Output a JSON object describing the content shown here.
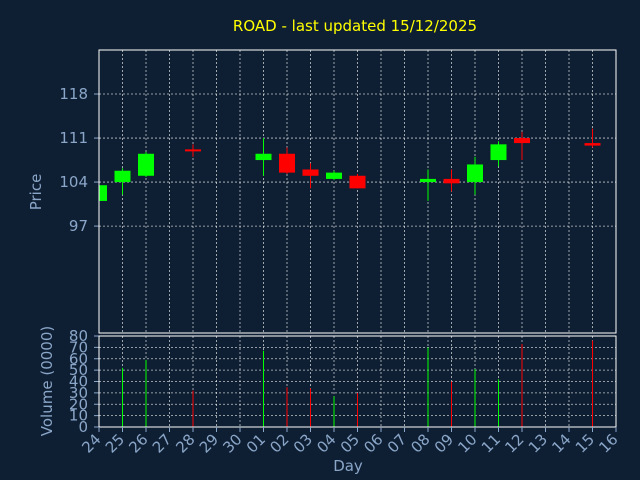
{
  "chart_data": {
    "type": "candlestick",
    "title": "ROAD - last updated 15/12/2025",
    "xlabel": "Day",
    "ylabel_price": "Price",
    "ylabel_volume": "Volume (0000)",
    "x_ticks": [
      "24",
      "25",
      "26",
      "27",
      "28",
      "29",
      "30",
      "01",
      "02",
      "03",
      "04",
      "05",
      "06",
      "07",
      "08",
      "09",
      "10",
      "11",
      "12",
      "13",
      "14",
      "15",
      "16"
    ],
    "price_ylim": [
      80,
      125
    ],
    "price_ticks": [
      97,
      104,
      111,
      118
    ],
    "volume_ylim": [
      0,
      80
    ],
    "volume_ticks": [
      0,
      10,
      20,
      30,
      40,
      50,
      60,
      70,
      80
    ],
    "grid": true,
    "colors": {
      "background": "#0f1f33",
      "up": "#00ff00",
      "down": "#ff0000",
      "title": "#ffff00",
      "axis_text": "#8aa6c8",
      "frame": "#ffffff"
    },
    "candles": [
      {
        "x": "24",
        "open": 101.0,
        "high": 104.0,
        "low": 100.5,
        "close": 103.5
      },
      {
        "x": "25",
        "open": 104.0,
        "high": 106.2,
        "low": 102.0,
        "close": 105.8
      },
      {
        "x": "26",
        "open": 105.0,
        "high": 108.8,
        "low": 104.8,
        "close": 108.5
      },
      {
        "x": "28",
        "open": 109.2,
        "high": 110.0,
        "low": 108.0,
        "close": 109.0
      },
      {
        "x": "01",
        "open": 107.5,
        "high": 111.0,
        "low": 105.0,
        "close": 108.5
      },
      {
        "x": "02",
        "open": 108.5,
        "high": 109.5,
        "low": 105.3,
        "close": 105.5
      },
      {
        "x": "03",
        "open": 106.0,
        "high": 107.0,
        "low": 103.0,
        "close": 105.0
      },
      {
        "x": "04",
        "open": 104.5,
        "high": 105.8,
        "low": 104.3,
        "close": 105.5
      },
      {
        "x": "05",
        "open": 105.0,
        "high": 105.3,
        "low": 103.0,
        "close": 103.0
      },
      {
        "x": "08",
        "open": 104.0,
        "high": 106.0,
        "low": 101.0,
        "close": 104.5
      },
      {
        "x": "09",
        "open": 104.5,
        "high": 106.0,
        "low": 102.5,
        "close": 103.8
      },
      {
        "x": "10",
        "open": 104.0,
        "high": 108.0,
        "low": 102.0,
        "close": 106.8
      },
      {
        "x": "11",
        "open": 107.5,
        "high": 110.5,
        "low": 106.5,
        "close": 110.0
      },
      {
        "x": "12",
        "open": 111.0,
        "high": 112.0,
        "low": 107.5,
        "close": 110.2
      },
      {
        "x": "15",
        "open": 110.2,
        "high": 112.5,
        "low": 109.5,
        "close": 109.8
      }
    ],
    "volume": [
      {
        "x": "25",
        "value": 52,
        "direction": "up"
      },
      {
        "x": "26",
        "value": 59,
        "direction": "up"
      },
      {
        "x": "28",
        "value": 32,
        "direction": "down"
      },
      {
        "x": "01",
        "value": 67,
        "direction": "up"
      },
      {
        "x": "02",
        "value": 35,
        "direction": "down"
      },
      {
        "x": "03",
        "value": 34,
        "direction": "down"
      },
      {
        "x": "04",
        "value": 27,
        "direction": "up"
      },
      {
        "x": "05",
        "value": 30,
        "direction": "down"
      },
      {
        "x": "08",
        "value": 70,
        "direction": "up"
      },
      {
        "x": "09",
        "value": 40,
        "direction": "down"
      },
      {
        "x": "10",
        "value": 51,
        "direction": "up"
      },
      {
        "x": "11",
        "value": 42,
        "direction": "up"
      },
      {
        "x": "12",
        "value": 73,
        "direction": "down"
      },
      {
        "x": "15",
        "value": 76,
        "direction": "down"
      }
    ]
  }
}
